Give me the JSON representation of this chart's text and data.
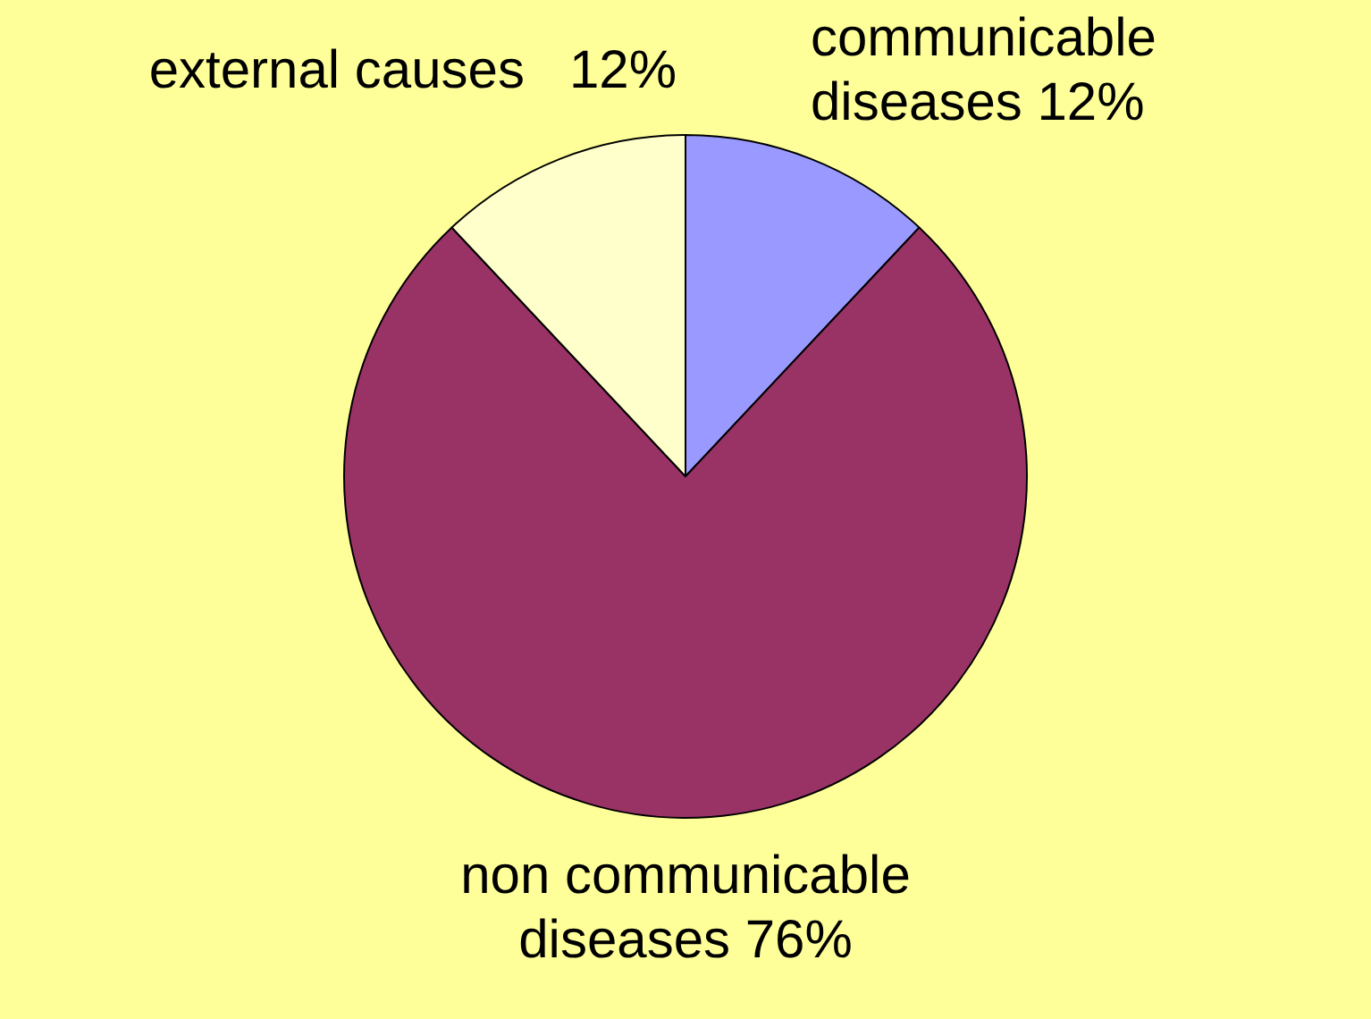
{
  "chart_data": {
    "type": "pie",
    "categories": [
      "communicable diseases",
      "non communicable diseases",
      "external causes"
    ],
    "values": [
      12,
      76,
      12
    ],
    "colors": [
      "#9999ff",
      "#993366",
      "#ffffcc"
    ],
    "value_labels": [
      "12%",
      "76%",
      "12%"
    ],
    "legend": false
  }
}
